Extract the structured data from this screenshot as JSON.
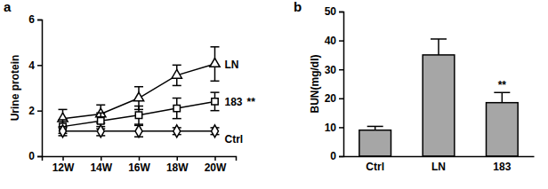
{
  "chart_data": [
    {
      "type": "line",
      "title": "a",
      "y_label": "Urine protein",
      "categories": [
        "12W",
        "14W",
        "16W",
        "18W",
        "20W"
      ],
      "series": [
        {
          "name": "LN",
          "color": "#000000",
          "marker": "triangle",
          "values": [
            1.65,
            1.85,
            2.55,
            3.55,
            4.05
          ],
          "errors": [
            0.4,
            0.4,
            0.5,
            0.45,
            0.75
          ]
        },
        {
          "name": "183",
          "color": "#000000",
          "marker": "square",
          "values": [
            1.3,
            1.55,
            1.8,
            2.1,
            2.4
          ],
          "errors": [
            0.3,
            0.35,
            0.4,
            0.45,
            0.4
          ]
        },
        {
          "name": "Ctrl",
          "color": "#000000",
          "marker": "diamond",
          "values": [
            1.1,
            1.1,
            1.1,
            1.1,
            1.1
          ],
          "errors": [
            0.2,
            0.2,
            0.25,
            0.15,
            0.15
          ]
        }
      ],
      "annotations": [
        {
          "text": "**",
          "target": "183"
        }
      ],
      "ylim": [
        0,
        6
      ],
      "yticks": [
        0,
        2,
        4,
        6
      ]
    },
    {
      "type": "bar",
      "title": "b",
      "y_label": "BUN(mg/dl)",
      "categories": [
        "Ctrl",
        "LN",
        "183"
      ],
      "values": [
        9,
        35,
        18.5
      ],
      "errors": [
        1.3,
        5.5,
        3.5
      ],
      "color": "#a6a6a6",
      "annotations": [
        {
          "text": "**",
          "target": "183"
        }
      ],
      "ylim": [
        0,
        50
      ],
      "yticks": [
        0,
        10,
        20,
        30,
        40,
        50
      ]
    }
  ]
}
